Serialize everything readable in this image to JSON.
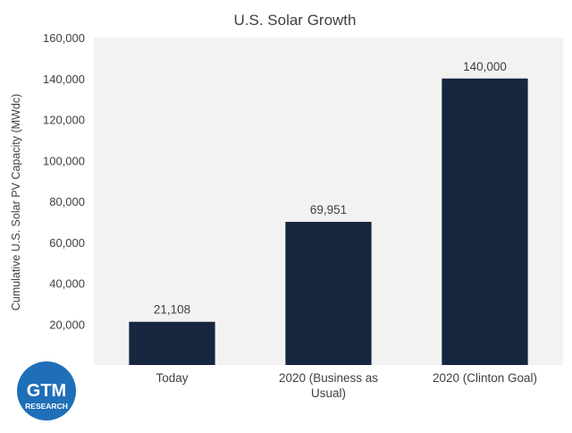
{
  "chart_data": {
    "type": "bar",
    "title": "U.S. Solar Growth",
    "xlabel": "",
    "ylabel": "Cumulative U.S. Solar PV Capacity (MWdc)",
    "categories": [
      [
        "Today"
      ],
      [
        "2020 (Business as",
        "Usual)"
      ],
      [
        "2020 (Clinton Goal)"
      ]
    ],
    "values": [
      21108,
      69951,
      140000
    ],
    "value_labels": [
      "21,108",
      "69,951",
      "140,000"
    ],
    "ylim": [
      0,
      160000
    ],
    "yticks": [
      20000,
      40000,
      60000,
      80000,
      100000,
      120000,
      140000,
      160000
    ],
    "ytick_labels": [
      "20,000",
      "40,000",
      "60,000",
      "80,000",
      "100,000",
      "120,000",
      "140,000",
      "160,000"
    ],
    "grid": false,
    "bar_color": "#16263f",
    "plot_background": "#f2f2f2",
    "text_color": "#404040"
  },
  "logo": {
    "line1": "GTM",
    "line2": "RESEARCH",
    "color": "#1e6fb8"
  }
}
